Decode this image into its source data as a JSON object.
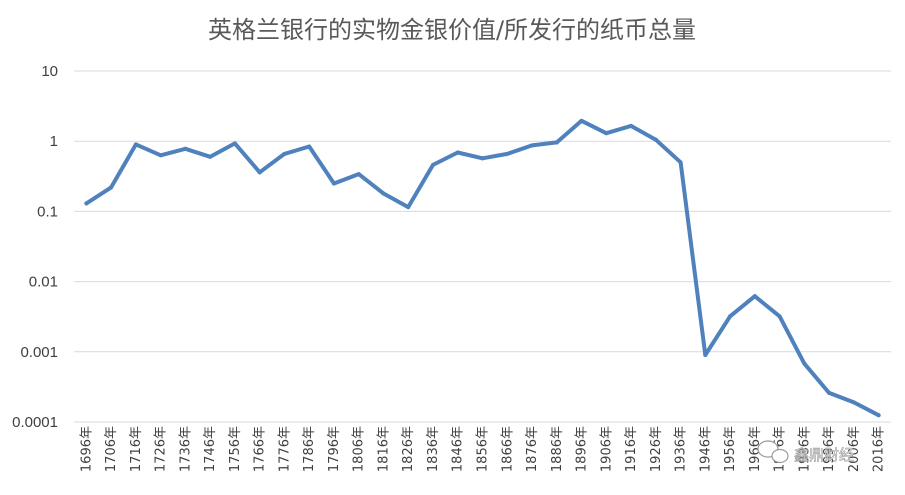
{
  "chart_data": {
    "type": "line",
    "title": "英格兰银行的实物金银价值/所发行的纸币总量",
    "y_scale": "log",
    "ylim": [
      0.0001,
      10
    ],
    "y_ticks": [
      "10",
      "1",
      "0.1",
      "0.01",
      "0.001",
      "0.0001"
    ],
    "y_tick_values": [
      10,
      1,
      0.1,
      0.01,
      0.001,
      0.0001
    ],
    "grid": true,
    "color": "#4f81bd",
    "categories": [
      "1696年",
      "1706年",
      "1716年",
      "1726年",
      "1736年",
      "1746年",
      "1756年",
      "1766年",
      "1776年",
      "1786年",
      "1796年",
      "1806年",
      "1816年",
      "1826年",
      "1836年",
      "1846年",
      "1856年",
      "1866年",
      "1876年",
      "1886年",
      "1896年",
      "1906年",
      "1916年",
      "1926年",
      "1936年",
      "1946年",
      "1956年",
      "1966年",
      "1976年",
      "1986年",
      "1996年",
      "2006年",
      "2016年"
    ],
    "series": [
      {
        "values": [
          0.13,
          0.22,
          0.9,
          0.63,
          0.78,
          0.6,
          0.93,
          0.36,
          0.66,
          0.84,
          0.25,
          0.34,
          0.18,
          0.115,
          0.46,
          0.69,
          0.57,
          0.66,
          0.87,
          0.96,
          1.95,
          1.3,
          1.65,
          1.05,
          0.5,
          0.0009,
          0.0032,
          0.0062,
          0.0032,
          0.00068,
          0.00026,
          0.00019,
          0.000125
        ]
      }
    ]
  },
  "watermark": "鑫鼎财经"
}
